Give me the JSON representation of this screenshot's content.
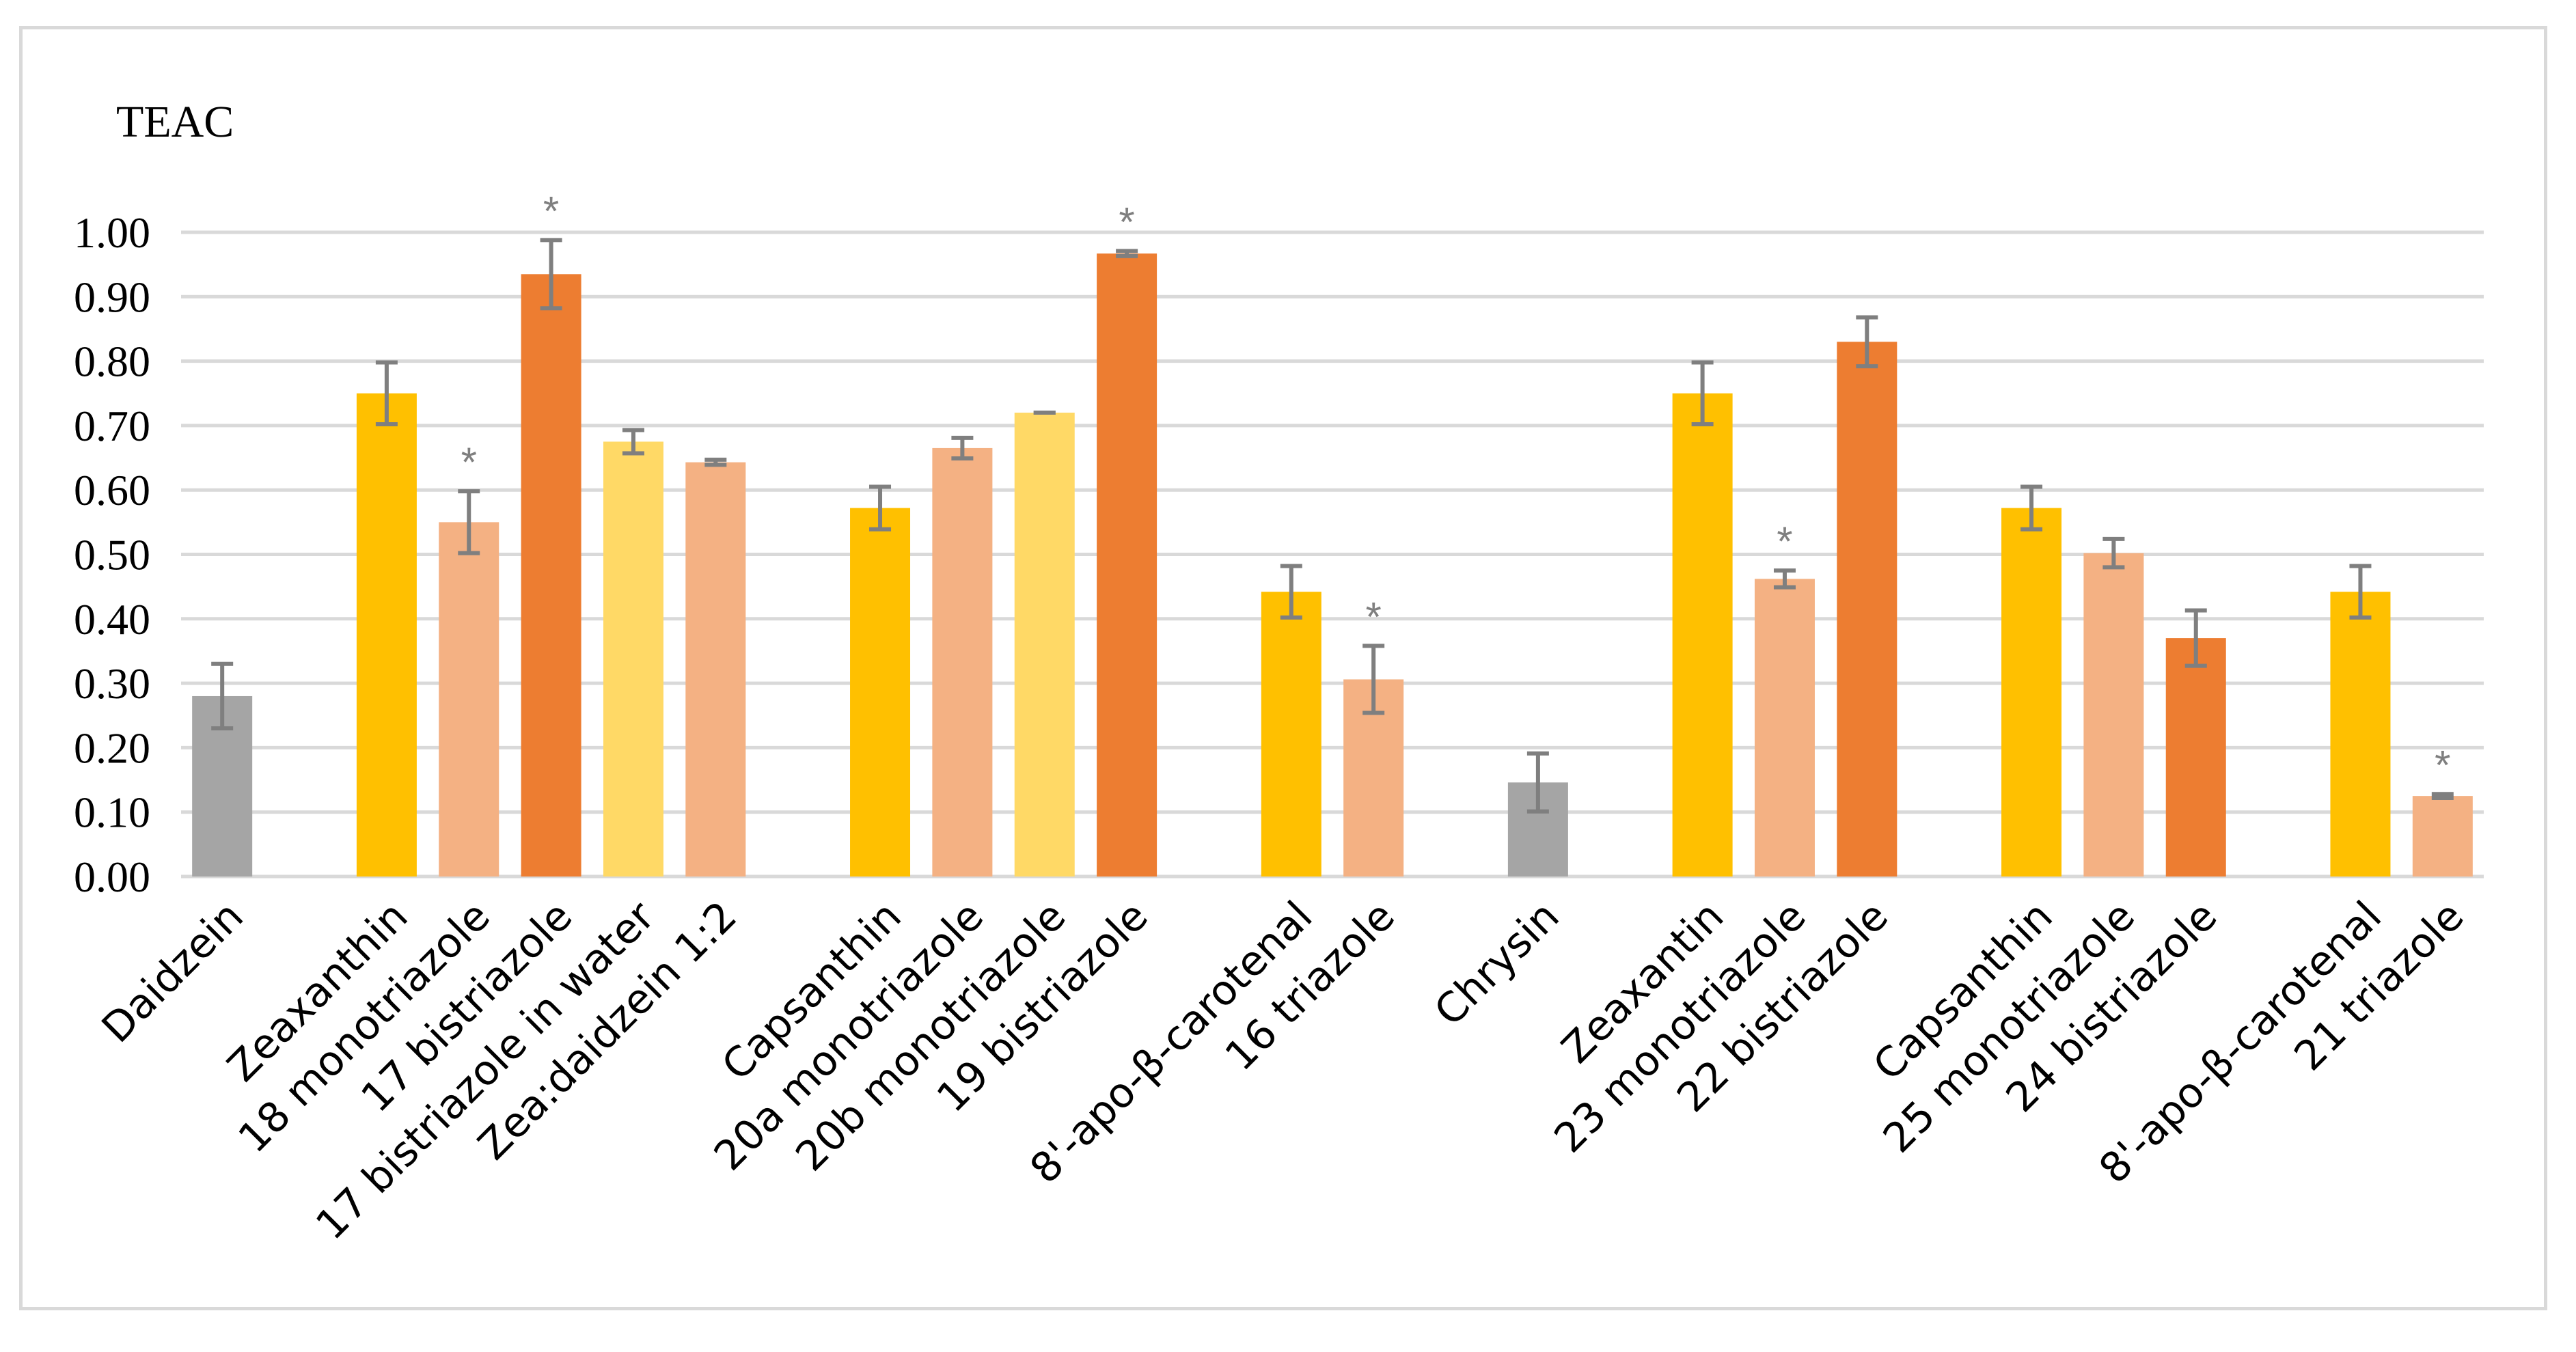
{
  "chart_data": {
    "type": "bar",
    "title": "",
    "ylabel": "TEAC",
    "xlabel": "",
    "ylim": [
      0,
      1.0
    ],
    "yticks": [
      "0.00",
      "0.10",
      "0.20",
      "0.30",
      "0.40",
      "0.50",
      "0.60",
      "0.70",
      "0.80",
      "0.90",
      "1.00"
    ],
    "grid": true,
    "colors": {
      "gray": "#a5a5a5",
      "yellow": "#ffc000",
      "salmon": "#f4b183",
      "orange": "#ed7d31",
      "light_yellow": "#ffd966",
      "error_bar": "#7f7f7f",
      "grid": "#d9d9d9"
    },
    "bars": [
      {
        "label": "Daidzein",
        "value": 0.28,
        "error": 0.05,
        "color": "gray",
        "star": false
      },
      {
        "label": "Zeaxanthin",
        "value": 0.75,
        "error": 0.048,
        "color": "yellow",
        "star": false
      },
      {
        "label": "18 monotriazole",
        "value": 0.55,
        "error": 0.048,
        "color": "salmon",
        "star": true
      },
      {
        "label": "17 bistriazole",
        "value": 0.935,
        "error": 0.053,
        "color": "orange",
        "star": true
      },
      {
        "label": "17 bistriazole in water",
        "value": 0.675,
        "error": 0.018,
        "color": "light_yellow",
        "star": false
      },
      {
        "label": "Zea:daidzein 1:2",
        "value": 0.643,
        "error": 0.004,
        "color": "salmon",
        "star": false
      },
      {
        "label": "Capsanthin",
        "value": 0.572,
        "error": 0.033,
        "color": "yellow",
        "star": false
      },
      {
        "label": "20a monotriazole",
        "value": 0.665,
        "error": 0.016,
        "color": "salmon",
        "star": false
      },
      {
        "label": "20b monotriazole",
        "value": 0.72,
        "error": 0.0,
        "color": "light_yellow",
        "star": false
      },
      {
        "label": "19 bistriazole",
        "value": 0.967,
        "error": 0.004,
        "color": "orange",
        "star": true
      },
      {
        "label": "8'-apo-β-carotenal",
        "value": 0.442,
        "error": 0.04,
        "color": "yellow",
        "star": false
      },
      {
        "label": "16 triazole",
        "value": 0.306,
        "error": 0.052,
        "color": "salmon",
        "star": true
      },
      {
        "label": "Chrysin",
        "value": 0.146,
        "error": 0.045,
        "color": "gray",
        "star": false
      },
      {
        "label": "Zeaxantin",
        "value": 0.75,
        "error": 0.048,
        "color": "yellow",
        "star": false
      },
      {
        "label": "23 monotriazole",
        "value": 0.462,
        "error": 0.013,
        "color": "salmon",
        "star": true
      },
      {
        "label": "22 bistriazole",
        "value": 0.83,
        "error": 0.038,
        "color": "orange",
        "star": false
      },
      {
        "label": "Capsanthin",
        "value": 0.572,
        "error": 0.033,
        "color": "yellow",
        "star": false
      },
      {
        "label": "25 monotriazole",
        "value": 0.502,
        "error": 0.022,
        "color": "salmon",
        "star": false
      },
      {
        "label": "24 bistriazole",
        "value": 0.37,
        "error": 0.043,
        "color": "orange",
        "star": false
      },
      {
        "label": "8'-apo-β-carotenal",
        "value": 0.442,
        "error": 0.04,
        "color": "yellow",
        "star": false
      },
      {
        "label": "21 triazole",
        "value": 0.125,
        "error": 0.003,
        "color": "salmon",
        "star": true
      }
    ],
    "slots": [
      0,
      2,
      3,
      4,
      5,
      6,
      8,
      9,
      10,
      11,
      13,
      14,
      16,
      18,
      19,
      20,
      22,
      23,
      24,
      26,
      27
    ],
    "slot_count": 28,
    "significance_marker": "*"
  }
}
